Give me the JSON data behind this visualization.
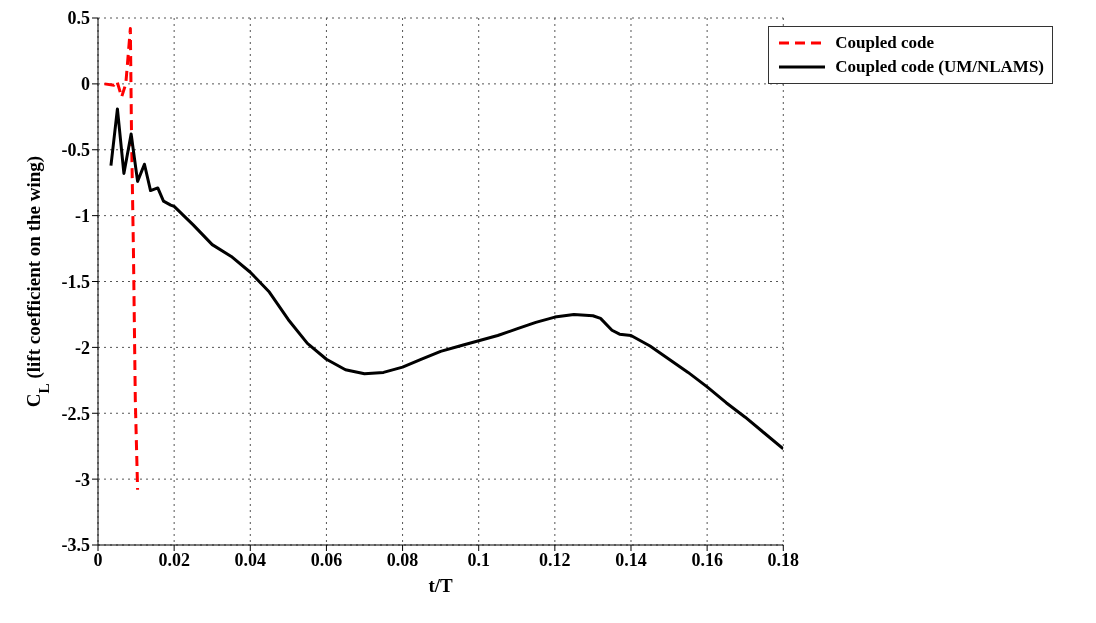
{
  "chart_data": {
    "type": "line",
    "xlabel": "t/T",
    "ylabel": "C$_{L}$ (lift coefficient on the wing)",
    "xlim": [
      0,
      0.18
    ],
    "xticks": [
      0,
      0.02,
      0.04,
      0.06,
      0.08,
      0.1,
      0.12,
      0.14,
      0.16,
      0.18
    ],
    "ylim": [
      -3.5,
      0.5
    ],
    "yticks": [
      -3.5,
      -3,
      -2.5,
      -2,
      -1.5,
      -1,
      -0.5,
      0,
      0.5
    ],
    "grid": true,
    "legend": "top right",
    "marker": "none",
    "series": [
      {
        "name": "Coupled code",
        "color": "#ff0000",
        "line_style": "dashed",
        "x": [
          0.0017,
          0.0042,
          0.005,
          0.0062,
          0.0073,
          0.0085,
          0.0088,
          0.0093,
          0.0098,
          0.0104
        ],
        "values": [
          0,
          -0.01,
          0.02,
          -0.1,
          0,
          0.42,
          -0.38,
          -1.25,
          -2.4,
          -3.08
        ]
      },
      {
        "name": "Coupled code (UM/NLAMS)",
        "color": "#000000",
        "line_style": "solid",
        "x": [
          0.0034,
          0.0051,
          0.0068,
          0.0087,
          0.0104,
          0.0122,
          0.0138,
          0.0157,
          0.0172,
          0.0191,
          0.02,
          0.025,
          0.03,
          0.035,
          0.04,
          0.045,
          0.05,
          0.055,
          0.06,
          0.065,
          0.07,
          0.075,
          0.08,
          0.085,
          0.09,
          0.095,
          0.1,
          0.105,
          0.11,
          0.115,
          0.12,
          0.125,
          0.13,
          0.132,
          0.135,
          0.137,
          0.14,
          0.145,
          0.15,
          0.155,
          0.16,
          0.165,
          0.17,
          0.175,
          0.18
        ],
        "values": [
          -0.62,
          -0.19,
          -0.68,
          -0.38,
          -0.74,
          -0.61,
          -0.81,
          -0.79,
          -0.89,
          -0.92,
          -0.93,
          -1.07,
          -1.22,
          -1.31,
          -1.43,
          -1.58,
          -1.79,
          -1.97,
          -2.09,
          -2.17,
          -2.2,
          -2.19,
          -2.15,
          -2.09,
          -2.03,
          -1.99,
          -1.95,
          -1.91,
          -1.86,
          -1.81,
          -1.77,
          -1.75,
          -1.76,
          -1.78,
          -1.87,
          -1.9,
          -1.91,
          -1.99,
          -2.09,
          -2.19,
          -2.3,
          -2.42,
          -2.53,
          -2.65,
          -2.77
        ]
      }
    ]
  }
}
